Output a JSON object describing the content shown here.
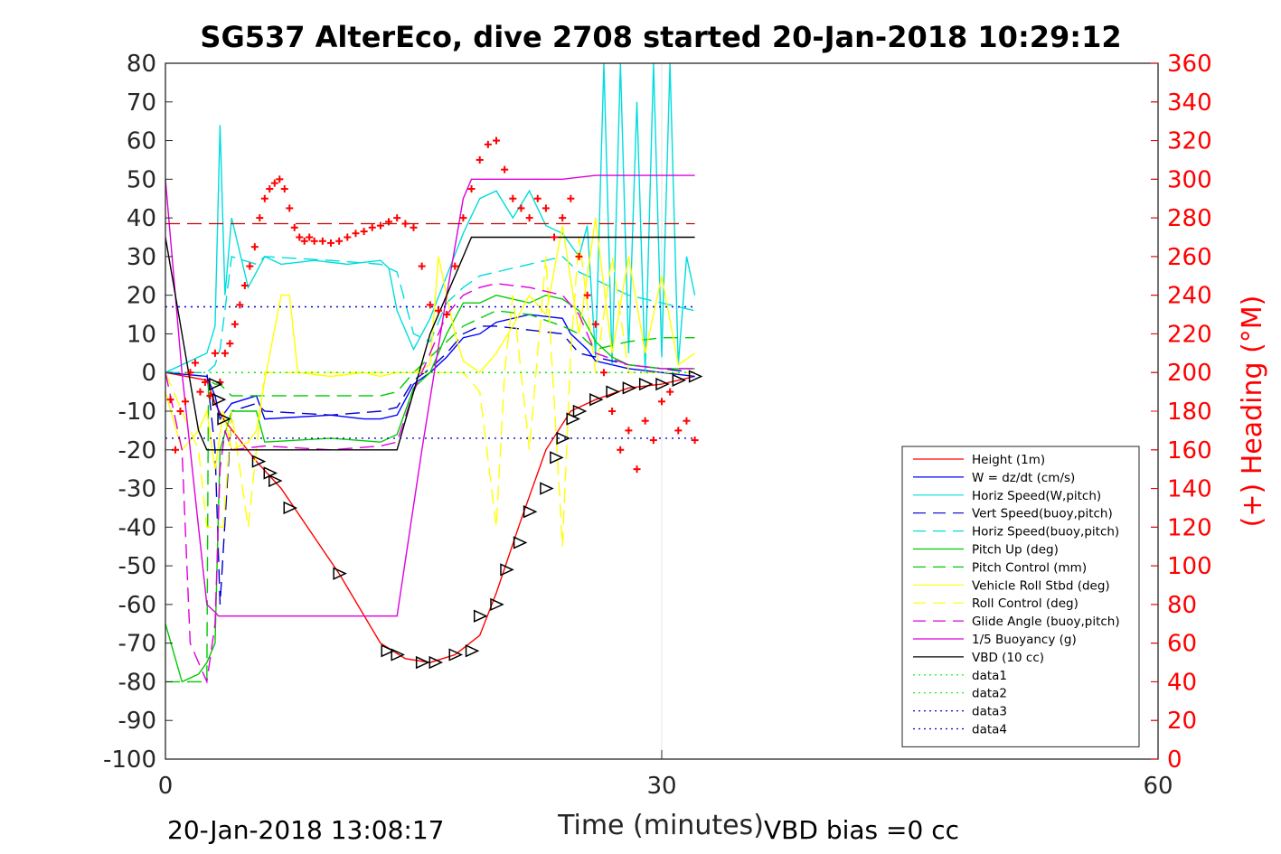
{
  "chart_data": {
    "type": "line",
    "title": "SG537 AlterEco, dive 2708 started 20-Jan-2018 10:29:12",
    "xlabel": "Time (minutes)",
    "ylabel": "",
    "y2label": "(+) Heading (°M)",
    "xlim": [
      0,
      60
    ],
    "ylim": [
      -100,
      80
    ],
    "y2lim": [
      0,
      360
    ],
    "x_ticks": [
      "0",
      "30",
      "60"
    ],
    "x_tick_values": [
      0,
      30,
      60
    ],
    "y_ticks": [
      "80",
      "70",
      "60",
      "50",
      "40",
      "30",
      "20",
      "10",
      "0",
      "-10",
      "-20",
      "-30",
      "-40",
      "-50",
      "-60",
      "-70",
      "-80",
      "-90",
      "-100"
    ],
    "y_tick_values": [
      80,
      70,
      60,
      50,
      40,
      30,
      20,
      10,
      0,
      -10,
      -20,
      -30,
      -40,
      -50,
      -60,
      -70,
      -80,
      -90,
      -100
    ],
    "y2_ticks": [
      "360",
      "340",
      "320",
      "300",
      "280",
      "260",
      "240",
      "220",
      "200",
      "180",
      "160",
      "140",
      "120",
      "100",
      "80",
      "60",
      "40",
      "20",
      "0"
    ],
    "y2_tick_values": [
      360,
      340,
      320,
      300,
      280,
      260,
      240,
      220,
      200,
      180,
      160,
      140,
      120,
      100,
      80,
      60,
      40,
      20,
      0
    ],
    "grid": "vertical at x ticks",
    "legend_position": "bottom-right",
    "footer_left": "20-Jan-2018 13:08:17",
    "footer_right": "VBD bias =0 cc",
    "series": [
      {
        "name": "Height (1m)",
        "color": "#ff0000",
        "style": "solid",
        "x": [
          0,
          2.5,
          3.0,
          3.5,
          5.5,
          7,
          10.5,
          13,
          14.5,
          16,
          17.5,
          19,
          20,
          21.5,
          23,
          24.5,
          26,
          28,
          30,
          32
        ],
        "y": [
          0,
          -2,
          -8,
          -12,
          -23,
          -30,
          -52,
          -70,
          -74,
          -75,
          -73,
          -68,
          -57,
          -38,
          -20,
          -10,
          -7,
          -4,
          -3,
          -1
        ]
      },
      {
        "name": "W = dz/dt (cm/s)",
        "color": "#0000ff",
        "style": "solid",
        "x": [
          0,
          2.5,
          3,
          3.3,
          4,
          5.5,
          6,
          10,
          12,
          13,
          14,
          15,
          16,
          17,
          18,
          19,
          20,
          22,
          24,
          24.5,
          25.5,
          26,
          28,
          30,
          32
        ],
        "y": [
          0,
          -1,
          -6,
          -12,
          -8,
          -6,
          -12,
          -11,
          -12,
          -12,
          -11,
          -3,
          0,
          4,
          9,
          10,
          13,
          15,
          14,
          10,
          6,
          3,
          1,
          0,
          -1
        ]
      },
      {
        "name": "Horiz Speed(W,pitch)",
        "color": "#00dddd",
        "style": "solid",
        "x": [
          0,
          2.5,
          3.0,
          3.3,
          3.6,
          4,
          5,
          6,
          7,
          9,
          11,
          13,
          13.5,
          14,
          15,
          16,
          17,
          18,
          19,
          20,
          21,
          22,
          23,
          24,
          25,
          25.5,
          26,
          26.5,
          27,
          27.5,
          28,
          28.5,
          29,
          29.5,
          30,
          30.5,
          31,
          31.5,
          32
        ],
        "y": [
          0,
          5,
          12,
          64,
          20,
          40,
          22,
          30,
          28,
          29,
          28,
          29,
          27,
          16,
          6,
          14,
          25,
          36,
          45,
          47,
          40,
          47,
          38,
          36,
          30,
          38,
          4,
          80,
          2,
          80,
          5,
          70,
          0,
          80,
          4,
          80,
          2,
          30,
          20
        ]
      },
      {
        "name": "Vert Speed(buoy,pitch)",
        "color": "#0000cc",
        "style": "dashed",
        "x": [
          0,
          2.5,
          3,
          3.3,
          4,
          5.5,
          6,
          10,
          13,
          14,
          15,
          16,
          17,
          18,
          19,
          20,
          22,
          24,
          25,
          28,
          30,
          32
        ],
        "y": [
          0,
          0,
          -20,
          -60,
          -10,
          -8,
          -10,
          -11,
          -10,
          -9,
          -2,
          1,
          5,
          10,
          12,
          12,
          11,
          10,
          5,
          2,
          1,
          0
        ]
      },
      {
        "name": "Horiz Speed(buoy,pitch)",
        "color": "#00dddd",
        "style": "dashed",
        "x": [
          0,
          2.5,
          3,
          3.3,
          4,
          5.5,
          6,
          10,
          13,
          14,
          15,
          16,
          17,
          18,
          19,
          20,
          22,
          24,
          25,
          28,
          30,
          32
        ],
        "y": [
          0,
          0,
          2,
          6,
          30,
          28,
          30,
          29,
          28,
          26,
          10,
          8,
          18,
          22,
          25,
          26,
          28,
          30,
          26,
          20,
          18,
          16
        ]
      },
      {
        "name": "Pitch Up (deg)",
        "color": "#00cc00",
        "style": "solid",
        "x": [
          0,
          1,
          2,
          2.5,
          3,
          3.3,
          4,
          5.5,
          6,
          10,
          13,
          14,
          15,
          16,
          17,
          18,
          19,
          20,
          21,
          22,
          23,
          24,
          25,
          26,
          27,
          28,
          30,
          32
        ],
        "y": [
          -65,
          -80,
          -78,
          -75,
          -70,
          -20,
          -10,
          -10,
          -18,
          -17,
          -18,
          -16,
          -4,
          0,
          10,
          18,
          18,
          20,
          19,
          18,
          20,
          19,
          16,
          8,
          4,
          2,
          1,
          1
        ]
      },
      {
        "name": "Pitch Control (mm)",
        "color": "#00cc00",
        "style": "dashed",
        "x": [
          0,
          2.5,
          2.6,
          3,
          3.3,
          4,
          6,
          10,
          13,
          14,
          15,
          16,
          17,
          18,
          19,
          20,
          22,
          24,
          25,
          26,
          28,
          30,
          32
        ],
        "y": [
          -80,
          -80,
          -2,
          -3,
          -3,
          -6,
          -6,
          -6,
          -6,
          -5,
          0,
          4,
          8,
          12,
          14,
          16,
          15,
          12,
          10,
          6,
          8,
          9,
          9
        ]
      },
      {
        "name": "Vehicle Roll Stbd (deg)",
        "color": "#ffff00",
        "style": "solid",
        "x": [
          0,
          1,
          2,
          2.5,
          3,
          3.5,
          4,
          5,
          5.5,
          6,
          7,
          7.5,
          8,
          10,
          12,
          13,
          14,
          15,
          16,
          16.5,
          17,
          17.5,
          18,
          19,
          20,
          21,
          22,
          23,
          24,
          25,
          26,
          27,
          28,
          29,
          30,
          31,
          32
        ],
        "y": [
          -5,
          -20,
          -15,
          -10,
          -25,
          -10,
          -20,
          -18,
          -15,
          -2,
          20,
          20,
          0,
          -1,
          0,
          -1,
          0,
          0,
          2,
          30,
          20,
          10,
          3,
          0,
          5,
          12,
          20,
          15,
          38,
          10,
          40,
          5,
          30,
          5,
          25,
          2,
          5
        ]
      },
      {
        "name": "Roll Control (deg)",
        "color": "#ffff00",
        "style": "dashed",
        "x": [
          0,
          1,
          2,
          2.5,
          3,
          3.5,
          4,
          5,
          6,
          10,
          13,
          14,
          15,
          16,
          17,
          18,
          19,
          20,
          20.5,
          21,
          22,
          23,
          24,
          24.5,
          25,
          26,
          27,
          28,
          30,
          32
        ],
        "y": [
          0,
          -10,
          -20,
          -40,
          -40,
          -40,
          -10,
          -40,
          0,
          0,
          0,
          0,
          0,
          0,
          0,
          0,
          -5,
          -40,
          0,
          20,
          -20,
          30,
          -45,
          5,
          35,
          0,
          30,
          0,
          0,
          0
        ]
      },
      {
        "name": "Glide Angle (buoy,pitch)",
        "color": "#dd00dd",
        "style": "dashed",
        "x": [
          0,
          1,
          1.5,
          2,
          2.5,
          3,
          3.3,
          3.6,
          4,
          6,
          10,
          13,
          14,
          15,
          16,
          17,
          18,
          19,
          20,
          22,
          24,
          25,
          26,
          28,
          30,
          32
        ],
        "y": [
          0,
          -20,
          -70,
          -75,
          -80,
          -65,
          -25,
          -15,
          -20,
          -19,
          -20,
          -19,
          -18,
          -5,
          5,
          15,
          20,
          22,
          23,
          22,
          20,
          15,
          5,
          2,
          1,
          1
        ]
      },
      {
        "name": "1/5 Buoyancy (g)",
        "color": "#dd00dd",
        "style": "solid",
        "x": [
          0,
          1,
          2,
          2.5,
          3,
          3.2,
          3.5,
          5,
          10,
          13,
          14,
          15.5,
          17,
          18,
          18.5,
          19,
          21,
          24,
          26,
          30,
          32
        ],
        "y": [
          50,
          0,
          -40,
          -60,
          -62,
          -63,
          -63,
          -63,
          -63,
          -63,
          -63,
          -20,
          20,
          45,
          50,
          50,
          50,
          50,
          51,
          51,
          51
        ]
      },
      {
        "name": "VBD (10 cc)",
        "color": "#000000",
        "style": "solid",
        "x": [
          0,
          1,
          2,
          2.5,
          3,
          5,
          10,
          13,
          14,
          15,
          16,
          17,
          18,
          18.5,
          20,
          25,
          30,
          32
        ],
        "y": [
          35,
          10,
          -15,
          -20,
          -20,
          -20,
          -20,
          -20,
          -20,
          -5,
          10,
          20,
          30,
          35,
          35,
          35,
          35,
          35
        ]
      },
      {
        "name": "data1",
        "color": "#00ee00",
        "style": "dotted",
        "x": [
          0,
          32
        ],
        "y": [
          0,
          0
        ]
      },
      {
        "name": "data2",
        "color": "#00ee00",
        "style": "dotted",
        "x": [
          0,
          32
        ],
        "y": [
          0,
          0
        ]
      },
      {
        "name": "data3",
        "color": "#0000cc",
        "style": "dotted",
        "x": [
          0,
          32
        ],
        "y": [
          17,
          17
        ]
      },
      {
        "name": "data4",
        "color": "#0000cc",
        "style": "dotted",
        "x": [
          0,
          32
        ],
        "y": [
          -17,
          -17
        ]
      }
    ],
    "reference_line": {
      "axis": "y2",
      "value": 277,
      "color": "#cc0000",
      "style": "dashed",
      "x": [
        0,
        32
      ]
    },
    "heading_points": {
      "color": "#ff0000",
      "marker": "+",
      "axis": "y2",
      "x": [
        0.3,
        0.6,
        0.9,
        1.2,
        1.5,
        1.8,
        2.1,
        2.4,
        2.7,
        3.0,
        3.3,
        3.6,
        3.9,
        4.2,
        4.5,
        4.8,
        5.1,
        5.4,
        5.7,
        6.0,
        6.3,
        6.6,
        6.9,
        7.2,
        7.5,
        7.8,
        8.1,
        8.4,
        8.7,
        9.0,
        9.5,
        10,
        10.5,
        11,
        11.5,
        12,
        12.5,
        13,
        13.5,
        14,
        14.5,
        15,
        15.5,
        16,
        16.5,
        17,
        17.5,
        18,
        18.5,
        19,
        19.5,
        20,
        20.5,
        21,
        21.5,
        22,
        22.5,
        23,
        23.5,
        24,
        24.5,
        25,
        25.5,
        26,
        26.5,
        27,
        27.5,
        28,
        28.5,
        29,
        29.5,
        30,
        30.5,
        31,
        31.5,
        32
      ],
      "y": [
        186,
        160,
        180,
        185,
        200,
        205,
        190,
        195,
        188,
        210,
        195,
        210,
        215,
        225,
        235,
        245,
        255,
        265,
        280,
        290,
        295,
        298,
        300,
        295,
        285,
        275,
        270,
        268,
        270,
        268,
        268,
        267,
        268,
        270,
        272,
        273,
        275,
        276,
        278,
        280,
        277,
        275,
        255,
        235,
        232,
        230,
        255,
        280,
        295,
        310,
        318,
        320,
        305,
        290,
        285,
        280,
        290,
        285,
        270,
        280,
        290,
        260,
        240,
        225,
        200,
        180,
        160,
        170,
        150,
        175,
        165,
        185,
        190,
        170,
        175,
        165
      ]
    },
    "depth_markers": {
      "marker": "triangle",
      "color": "#000000",
      "x": [
        3.0,
        3.2,
        3.5,
        5.6,
        6.3,
        6.6,
        7.5,
        10.5,
        13.4,
        14.0,
        15.5,
        16.3,
        17.5,
        18.5,
        19.0,
        20.0,
        20.6,
        21.4,
        22.0,
        23.0,
        23.6,
        24.0,
        24.6,
        25.0,
        26.0,
        27.0,
        28.0,
        29.0,
        30.0,
        31.0,
        32.0
      ],
      "y": [
        -3,
        -7,
        -12,
        -23,
        -26,
        -28,
        -35,
        -52,
        -72,
        -73,
        -75,
        -75,
        -73,
        -72,
        -63,
        -60,
        -51,
        -44,
        -36,
        -30,
        -22,
        -17,
        -12,
        -10,
        -7,
        -5,
        -4,
        -3,
        -3,
        -2,
        -1
      ]
    }
  }
}
